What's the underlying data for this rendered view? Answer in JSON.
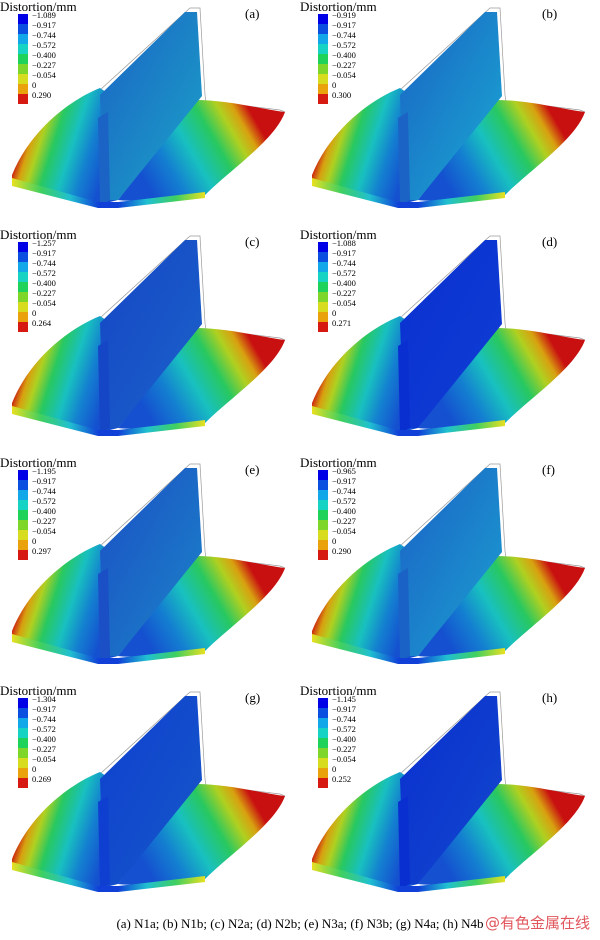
{
  "panels": [
    {
      "title": "Distortion/mm",
      "letter": "(a)",
      "legend": [
        "−1.089",
        "−0.917",
        "−0.744",
        "−0.572",
        "−0.400",
        "−0.227",
        "−0.054",
        "0",
        "0.290"
      ]
    },
    {
      "title": "Distortion/mm",
      "letter": "(b)",
      "legend": [
        "−0.919",
        "−0.917",
        "−0.744",
        "−0.572",
        "−0.400",
        "−0.227",
        "−0.054",
        "0",
        "0.300"
      ]
    },
    {
      "title": "Distortion/mm",
      "letter": "(c)",
      "legend": [
        "−1.257",
        "−0.917",
        "−0.744",
        "−0.572",
        "−0.400",
        "−0.227",
        "−0.054",
        "0",
        "0.264"
      ]
    },
    {
      "title": "Distortion/mm",
      "letter": "(d)",
      "legend": [
        "−1.088",
        "−0.917",
        "−0.744",
        "−0.572",
        "−0.400",
        "−0.227",
        "−0.054",
        "0",
        "0.271"
      ]
    },
    {
      "title": "Distortion/mm",
      "letter": "(e)",
      "legend": [
        "−1.195",
        "−0.917",
        "−0.744",
        "−0.572",
        "−0.400",
        "−0.227",
        "−0.054",
        "0",
        "0.297"
      ]
    },
    {
      "title": "Distortion/mm",
      "letter": "(f)",
      "legend": [
        "−0.965",
        "−0.917",
        "−0.744",
        "−0.572",
        "−0.400",
        "−0.227",
        "−0.054",
        "0",
        "0.290"
      ]
    },
    {
      "title": "Distortion/mm",
      "letter": "(g)",
      "legend": [
        "−1.304",
        "−0.917",
        "−0.744",
        "−0.572",
        "−0.400",
        "−0.227",
        "−0.054",
        "0",
        "0.269"
      ]
    },
    {
      "title": "Distortion/mm",
      "letter": "(h)",
      "legend": [
        "−1.145",
        "−0.917",
        "−0.744",
        "−0.572",
        "−0.400",
        "−0.227",
        "−0.054",
        "0",
        "0.252"
      ]
    }
  ],
  "legend_colors": [
    "#0000e6",
    "#0a4fe0",
    "#12a7e8",
    "#17d3c4",
    "#1fd35a",
    "#7fd62b",
    "#d8dc1e",
    "#e9a10c",
    "#d61a12"
  ],
  "caption": "(a) N1a; (b) N1b; (c) N2a; (d) N2b; (e) N3a; (f) N3b; (g) N4a; (h) N4b",
  "watermark": "@有色金属在线"
}
